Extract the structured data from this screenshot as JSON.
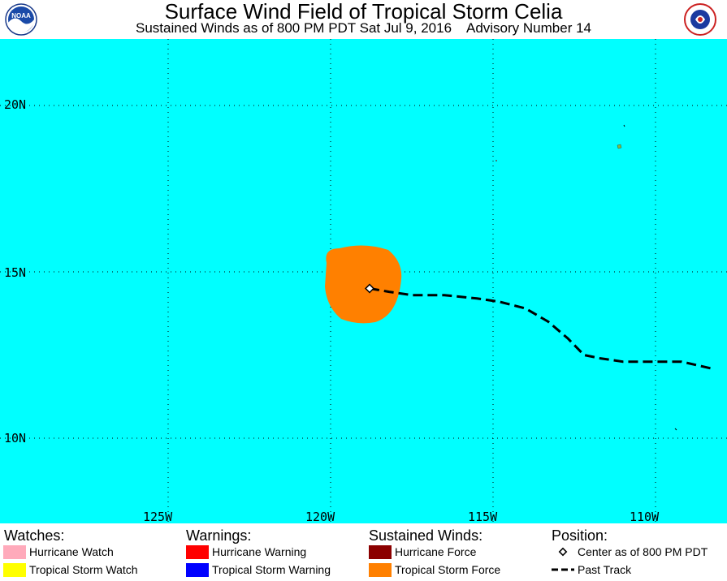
{
  "header": {
    "title": "Surface Wind Field of Tropical Storm Celia",
    "subtitle": "Sustained Winds as of 800 PM PDT Sat Jul 9, 2016    Advisory Number 14",
    "logo_left": "NOAA",
    "logo_right": "NATIONAL WEATHER SERVICE"
  },
  "map": {
    "background_color": "#00ffff",
    "lat_labels": [
      "20N",
      "15N",
      "10N"
    ],
    "lon_labels": [
      "125W",
      "120W",
      "115W",
      "110W"
    ],
    "storm_center": {
      "lat": 14.5,
      "lon": -118.8
    },
    "tropical_storm_force_color": "#ff8000",
    "past_track": [
      [
        -118.8,
        14.5
      ],
      [
        -118.2,
        14.4
      ],
      [
        -117.5,
        14.3
      ],
      [
        -116.5,
        14.3
      ],
      [
        -115.5,
        14.2
      ],
      [
        -114.8,
        14.1
      ],
      [
        -114.0,
        13.9
      ],
      [
        -113.3,
        13.5
      ],
      [
        -112.7,
        13.0
      ],
      [
        -112.2,
        12.5
      ],
      [
        -111.7,
        12.4
      ],
      [
        -111.0,
        12.3
      ],
      [
        -110.0,
        12.3
      ],
      [
        -109.2,
        12.3
      ],
      [
        -108.3,
        12.1
      ]
    ]
  },
  "legend": {
    "watches": {
      "heading": "Watches:",
      "items": [
        {
          "label": "Hurricane Watch",
          "color": "#ffaabb"
        },
        {
          "label": "Tropical Storm Watch",
          "color": "#ffff00"
        }
      ]
    },
    "warnings": {
      "heading": "Warnings:",
      "items": [
        {
          "label": "Hurricane Warning",
          "color": "#ff0000"
        },
        {
          "label": "Tropical Storm Warning",
          "color": "#0000ff"
        }
      ]
    },
    "winds": {
      "heading": "Sustained Winds:",
      "items": [
        {
          "label": "Hurricane Force",
          "color": "#8b0000"
        },
        {
          "label": "Tropical Storm Force",
          "color": "#ff8000"
        }
      ]
    },
    "position": {
      "heading": "Position:",
      "items": [
        {
          "label": "Center as of 800 PM PDT",
          "icon": "diamond-icon"
        },
        {
          "label": "Past Track",
          "icon": "dashed-line-icon"
        }
      ]
    }
  }
}
